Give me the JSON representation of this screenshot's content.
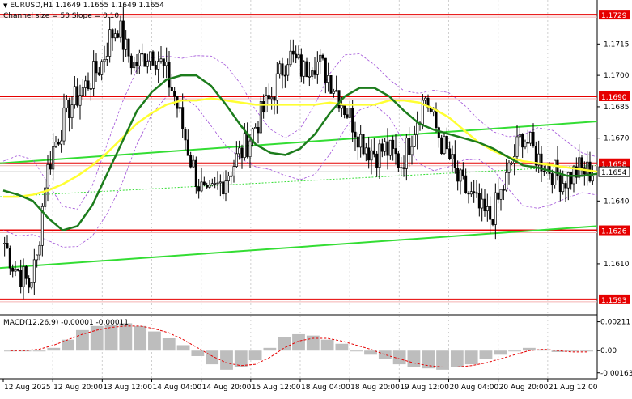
{
  "header": {
    "symbol_line": "EURUSD,H1  1.1649 1.1655 1.1649 1.1654",
    "channel_line": "Channel size = 50 Slope = 0.10"
  },
  "macd": {
    "label": "MACD(12,26,9) -0.00001 -0.00011"
  },
  "colors": {
    "candle": "#000000",
    "ma_fast": "#ffff33",
    "ma_slow": "#1c7c1c",
    "channel": "#33dd33",
    "envelope": "#a050d8",
    "level": "#e60000",
    "histogram": "#bdbdbd",
    "signal": "#e60000"
  },
  "chart_data": [
    {
      "type": "candlestick",
      "title": "",
      "ylim": [
        1.1586,
        1.1736
      ],
      "yticks": [
        "1.1715",
        "1.1700",
        "1.1685",
        "1.1670",
        "1.1640",
        "1.1610"
      ],
      "levels": [
        {
          "value": 1.1729,
          "label": "1.1729"
        },
        {
          "value": 1.169,
          "label": "1.1690"
        },
        {
          "value": 1.1658,
          "label": "1.1658"
        },
        {
          "value": 1.1626,
          "label": "1.1626"
        },
        {
          "value": 1.1593,
          "label": "1.1593"
        }
      ],
      "current_price": {
        "value": 1.1654,
        "label": "1.1654"
      },
      "close_series": [
        1.162,
        1.161,
        1.1605,
        1.16,
        1.1612,
        1.165,
        1.1665,
        1.1675,
        1.1685,
        1.169,
        1.1695,
        1.17,
        1.1706,
        1.1718,
        1.1724,
        1.1712,
        1.1705,
        1.1708,
        1.1712,
        1.1708,
        1.17,
        1.169,
        1.1675,
        1.166,
        1.1648,
        1.164,
        1.1645,
        1.165,
        1.1656,
        1.1662,
        1.1668,
        1.1676,
        1.1683,
        1.169,
        1.17,
        1.171,
        1.1706,
        1.1702,
        1.1708,
        1.1705,
        1.17,
        1.1693,
        1.1685,
        1.1678,
        1.167,
        1.1665,
        1.1663,
        1.1665,
        1.1662,
        1.1658,
        1.1668,
        1.168,
        1.169,
        1.1678,
        1.1668,
        1.166,
        1.165,
        1.1645,
        1.164,
        1.1634,
        1.1632,
        1.164,
        1.165,
        1.1662,
        1.1672,
        1.1666,
        1.166,
        1.1657,
        1.1653,
        1.165,
        1.1652,
        1.1655,
        1.1654
      ],
      "ma_fast": [
        1.1642,
        1.1642,
        1.1643,
        1.1645,
        1.1648,
        1.1652,
        1.1657,
        1.1663,
        1.167,
        1.1677,
        1.1682,
        1.1686,
        1.1688,
        1.1688,
        1.1689,
        1.1688,
        1.1687,
        1.1686,
        1.1686,
        1.1686,
        1.1686,
        1.1686,
        1.1687,
        1.1686,
        1.1686,
        1.1686,
        1.1688,
        1.1688,
        1.1687,
        1.1684,
        1.168,
        1.1674,
        1.1668,
        1.1664,
        1.1661,
        1.1659,
        1.1658,
        1.1657,
        1.1656,
        1.1655,
        1.1654
      ],
      "ma_slow": [
        1.1645,
        1.1643,
        1.164,
        1.1632,
        1.1626,
        1.1628,
        1.1638,
        1.1653,
        1.1668,
        1.1683,
        1.1692,
        1.1698,
        1.17,
        1.17,
        1.1695,
        1.1686,
        1.1676,
        1.1667,
        1.1663,
        1.1662,
        1.1665,
        1.1672,
        1.1682,
        1.169,
        1.1694,
        1.1694,
        1.169,
        1.1683,
        1.1677,
        1.1674,
        1.1672,
        1.167,
        1.1668,
        1.1665,
        1.1661,
        1.1657,
        1.1656,
        1.1654,
        1.1652,
        1.1652,
        1.1653
      ],
      "channel_upper": [
        1.1658,
        1.1678
      ],
      "channel_lower": [
        1.1608,
        1.1628
      ],
      "channel_mid": [
        1.1642,
        1.1657
      ]
    },
    {
      "type": "histogram",
      "title": "",
      "ylim": [
        -0.002,
        0.0025
      ],
      "yticks": [
        "0.00211",
        "0.00",
        "-0.00163"
      ],
      "values": [
        0.0,
        0.0,
        0.0,
        0.0002,
        0.0008,
        0.0015,
        0.0018,
        0.0019,
        0.002,
        0.0018,
        0.0014,
        0.0009,
        0.0004,
        -0.0004,
        -0.001,
        -0.0014,
        -0.0012,
        -0.0007,
        0.0002,
        0.001,
        0.0012,
        0.0011,
        0.0008,
        0.0005,
        0.0,
        -0.0003,
        -0.0006,
        -0.001,
        -0.0012,
        -0.0013,
        -0.0014,
        -0.0012,
        -0.001,
        -0.0006,
        -0.0003,
        0.0,
        0.0002,
        0.0001,
        -0.0001,
        0.0,
        0.0
      ],
      "signal": [
        0.0,
        0.0,
        0.0001,
        0.0004,
        0.0008,
        0.0012,
        0.0015,
        0.0017,
        0.0018,
        0.0018,
        0.0016,
        0.0013,
        0.0008,
        0.0002,
        -0.0004,
        -0.0009,
        -0.0011,
        -0.001,
        -0.0005,
        0.0002,
        0.0007,
        0.0009,
        0.0009,
        0.0007,
        0.0004,
        0.0001,
        -0.0003,
        -0.0006,
        -0.0009,
        -0.0011,
        -0.0012,
        -0.0012,
        -0.0011,
        -0.0009,
        -0.0006,
        -0.0003,
        0.0,
        0.0001,
        0.0,
        -0.0001,
        -0.0001
      ]
    }
  ],
  "x_labels": [
    "12 Aug 2025",
    "12 Aug 20:00",
    "13 Aug 12:00",
    "14 Aug 04:00",
    "14 Aug 20:00",
    "15 Aug 12:00",
    "18 Aug 04:00",
    "18 Aug 20:00",
    "19 Aug 12:00",
    "20 Aug 04:00",
    "20 Aug 20:00",
    "21 Aug 12:00"
  ]
}
